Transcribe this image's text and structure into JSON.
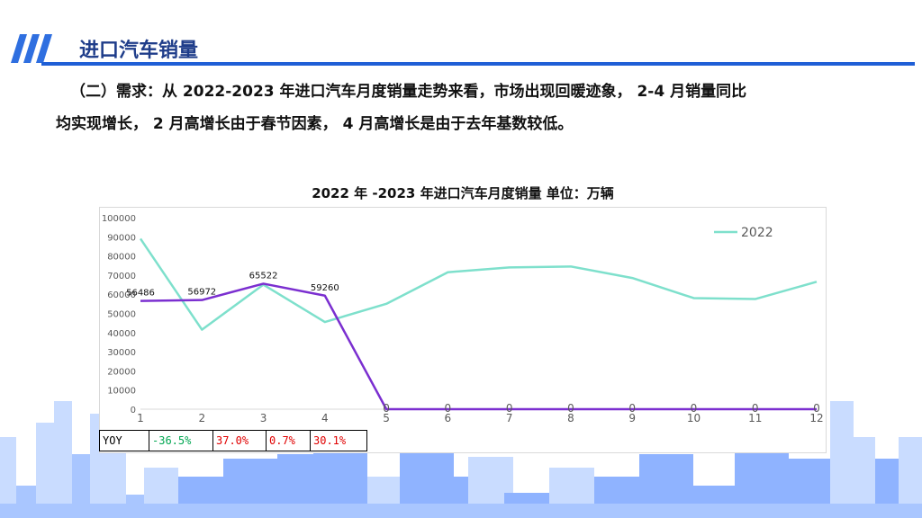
{
  "header": {
    "title": "进口汽车销量"
  },
  "body": {
    "line1": "（二）需求：从 2022-2023 年进口汽车月度销量走势来看，市场出现回暖迹象， 2-4 月销量同比",
    "line2": "均实现增长， 2 月高增长由于春节因素， 4 月高增长是由于去年基数较低。"
  },
  "yoy": {
    "label": "YOY",
    "values": [
      "-36.5%",
      "37.0%",
      "0.7%",
      "30.1%"
    ],
    "colors": [
      "#00a651",
      "#e00000",
      "#e00000",
      "#e00000"
    ]
  },
  "chart_data": {
    "type": "line",
    "title": "2022 年 -2023 年进口汽车月度销量  单位：万辆",
    "x": [
      1,
      2,
      3,
      4,
      5,
      6,
      7,
      8,
      9,
      10,
      11,
      12
    ],
    "ylim": [
      0,
      100000
    ],
    "yticks": [
      0,
      10000,
      20000,
      30000,
      40000,
      50000,
      60000,
      70000,
      80000,
      90000,
      100000
    ],
    "grid": false,
    "legend_position": "top-right",
    "series": [
      {
        "name": "2022",
        "color": "#7ee0cc",
        "values": [
          89000,
          41500,
          65000,
          45500,
          55000,
          71500,
          74000,
          74500,
          68500,
          58000,
          57500,
          66500
        ],
        "show_labels": false,
        "in_legend": true
      },
      {
        "name": "",
        "color": "#7b2fd0",
        "values": [
          56486,
          56972,
          65522,
          59260,
          0,
          0,
          0,
          0,
          0,
          0,
          0,
          0
        ],
        "data_labels": [
          "56486",
          "56972",
          "65522",
          "59260",
          "0",
          "0",
          "0",
          "0",
          "0",
          "0",
          "0",
          "0"
        ],
        "show_labels": true,
        "in_legend": false
      }
    ]
  }
}
